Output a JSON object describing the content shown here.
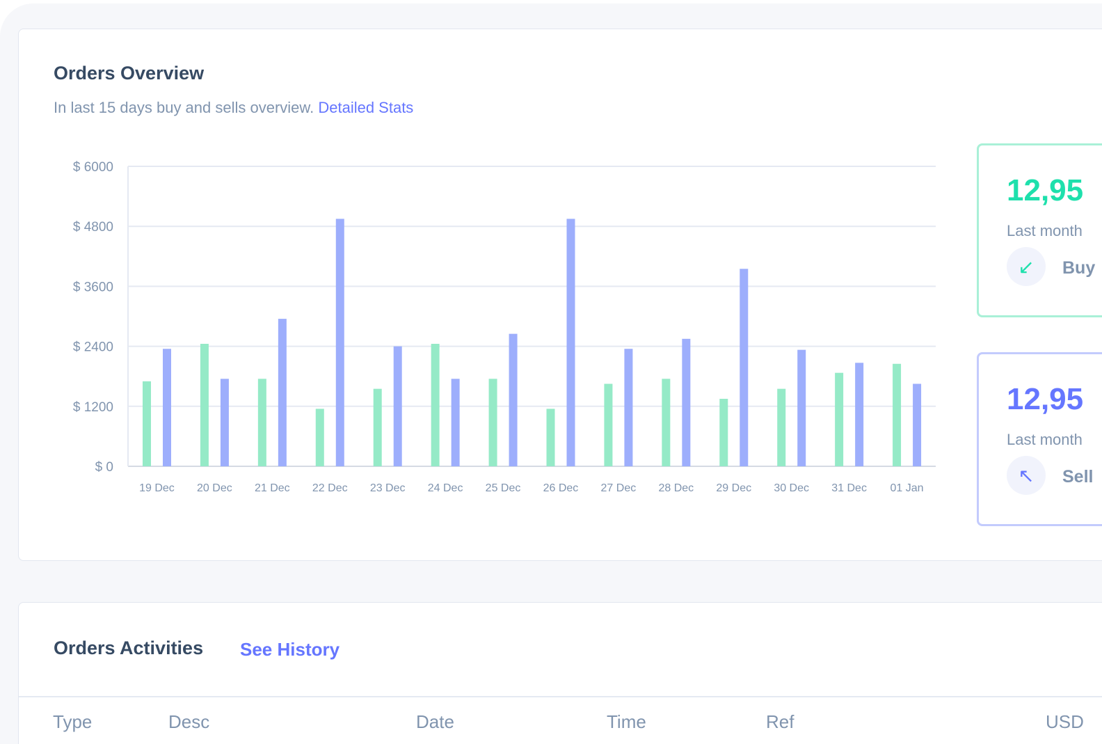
{
  "overview": {
    "title": "Orders Overview",
    "subtitle": "In last 15 days buy and sells overview.",
    "link": "Detailed Stats"
  },
  "stats": [
    {
      "value": "12,95",
      "label": "Last month",
      "type": "Buy",
      "icon": "arrow-down-left-icon",
      "color": "#1ee0ac"
    },
    {
      "value": "12,95",
      "label": "Last month",
      "type": "Sell",
      "icon": "arrow-up-left-icon",
      "color": "#6576ff"
    }
  ],
  "activities": {
    "title": "Orders Activities",
    "link": "See History",
    "columns": [
      "Type",
      "Desc",
      "Date",
      "Time",
      "Ref",
      "USD"
    ]
  },
  "chart_data": {
    "type": "bar",
    "categories": [
      "19 Dec",
      "20 Dec",
      "21 Dec",
      "22 Dec",
      "23 Dec",
      "24 Dec",
      "25 Dec",
      "26 Dec",
      "27 Dec",
      "28 Dec",
      "29 Dec",
      "30 Dec",
      "31 Dec",
      "01 Jan"
    ],
    "series": [
      {
        "values": [
          1700,
          2450,
          1750,
          1150,
          1550,
          2450,
          1750,
          1150,
          1650,
          1750,
          1350,
          1550,
          1870,
          2050
        ],
        "color": "#95eac7"
      },
      {
        "values": [
          2350,
          1750,
          2950,
          4950,
          2400,
          1750,
          2650,
          4950,
          2350,
          2550,
          3950,
          2330,
          2070,
          1650
        ],
        "color": "#9daefc"
      }
    ],
    "yticks": [
      "$ 0",
      "$ 1200",
      "$ 2400",
      "$ 3600",
      "$ 4800",
      "$ 6000"
    ],
    "ylim": [
      0,
      6000
    ],
    "grid": true
  }
}
